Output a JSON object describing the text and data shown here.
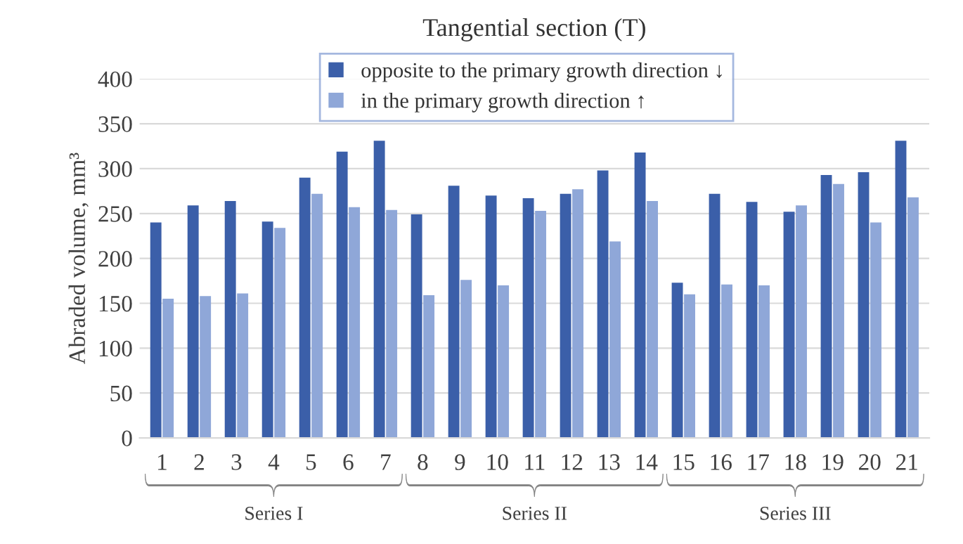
{
  "chart_data": {
    "type": "bar",
    "title": "Tangential section (T)",
    "ylabel": "Abraded volume, mm³",
    "categories": [
      "1",
      "2",
      "3",
      "4",
      "5",
      "6",
      "7",
      "8",
      "9",
      "10",
      "11",
      "12",
      "13",
      "14",
      "15",
      "16",
      "17",
      "18",
      "19",
      "20",
      "21"
    ],
    "series": [
      {
        "name": "opposite to the primary growth direction ↓",
        "color": "#3b5fa9",
        "values": [
          240,
          259,
          264,
          241,
          290,
          319,
          331,
          249,
          281,
          270,
          267,
          272,
          298,
          318,
          173,
          272,
          263,
          252,
          293,
          296,
          331
        ]
      },
      {
        "name": "in the primary growth direction ↑",
        "color": "#8fa7d8",
        "values": [
          155,
          158,
          161,
          234,
          272,
          257,
          254,
          159,
          176,
          170,
          253,
          277,
          219,
          264,
          160,
          171,
          170,
          259,
          283,
          240,
          268
        ]
      }
    ],
    "ylim": [
      0,
      400
    ],
    "yticks": [
      0,
      50,
      100,
      150,
      200,
      250,
      300,
      350,
      400
    ],
    "grid": "y",
    "legend": "top",
    "annotations": [
      "Series I",
      "Series II",
      "Series III"
    ]
  }
}
